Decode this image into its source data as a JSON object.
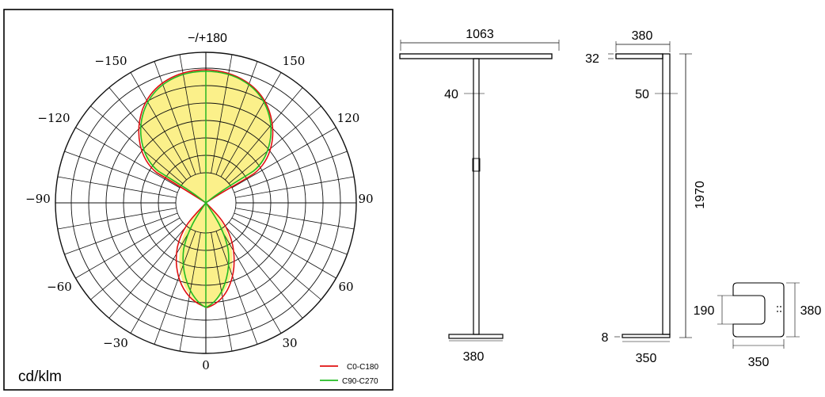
{
  "polar": {
    "unit": "cd/klm",
    "angle_labels": {
      "top": "−/+180",
      "left_150": "−150",
      "right_150": "150",
      "left_120": "−120",
      "right_120": "120",
      "left_90": "−90",
      "right_90": "90",
      "left_60": "−60",
      "right_60": "60",
      "left_30": "−30",
      "right_30": "30",
      "bottom": "0"
    },
    "legend": [
      {
        "label": "C0-C180",
        "color": "#e01010"
      },
      {
        "label": "C90-C270",
        "color": "#22bb22"
      }
    ],
    "fill_color": "#fbf08a"
  },
  "front_view": {
    "width_top": "1063",
    "arm_thickness": "40",
    "base_width": "380"
  },
  "side_view": {
    "arm_depth": "380",
    "head_thickness": "32",
    "pole_thickness": "50",
    "height": "1970",
    "base_thickness": "8",
    "base_depth": "350"
  },
  "top_view": {
    "inner": "190",
    "depth": "380",
    "width": "350"
  }
}
